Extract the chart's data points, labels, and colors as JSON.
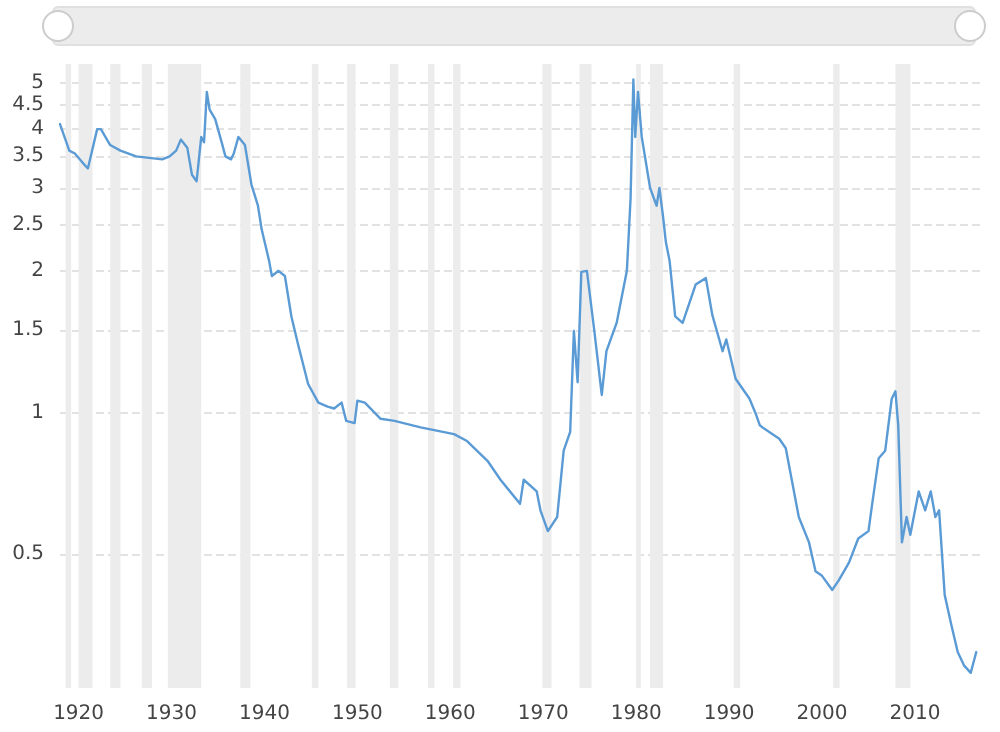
{
  "chart_data": {
    "type": "line",
    "log": "y",
    "grid": "y",
    "marker": "none",
    "line_style": "solid",
    "xlim": [
      1918,
      2017
    ],
    "xticks": [
      1920,
      1930,
      1940,
      1950,
      1960,
      1970,
      1980,
      1990,
      2000,
      2010
    ],
    "ylim": [
      0.26,
      5.5
    ],
    "yticks": [
      0.5,
      1,
      1.5,
      2,
      2.5,
      3,
      3.5,
      4,
      4.5,
      5
    ],
    "series": [
      {
        "color": "#5b9bd5",
        "x": [
          1918,
          1919,
          1919.6,
          1920.4,
          1921,
          1922,
          1922.4,
          1923.4,
          1924.5,
          1926.2,
          1929,
          1929.8,
          1930.5,
          1931,
          1931.7,
          1932.2,
          1932.7,
          1933.2,
          1933.5,
          1933.8,
          1934.1,
          1934.7,
          1935.4,
          1935.8,
          1936.4,
          1936.7,
          1937.2,
          1937.9,
          1938.6,
          1939.3,
          1939.7,
          1940.5,
          1940.8,
          1941.5,
          1942.2,
          1942.9,
          1943.6,
          1944.7,
          1945.8,
          1946.8,
          1947.5,
          1948.3,
          1948.8,
          1949.7,
          1950,
          1950.8,
          1952.5,
          1954,
          1956.8,
          1960.4,
          1961.8,
          1964,
          1965.4,
          1967.5,
          1967.9,
          1969.3,
          1969.7,
          1970.5,
          1971.5,
          1972.2,
          1972.9,
          1973.3,
          1973.7,
          1974.1,
          1974.7,
          1975.5,
          1976.3,
          1976.8,
          1977.9,
          1979,
          1979.4,
          1979.7,
          1979.9,
          1980.2,
          1980.6,
          1981.5,
          1982.2,
          1982.5,
          1982.9,
          1983.2,
          1983.6,
          1984.2,
          1985,
          1986.4,
          1987.5,
          1988.2,
          1989.3,
          1989.7,
          1990.7,
          1992.2,
          1992.9,
          1993.3,
          1993.6,
          1995.4,
          1996.1,
          1997.5,
          1998.6,
          1999.3,
          2000,
          2001.1,
          2001.8,
          2002.9,
          2003.9,
          2005,
          2005.4,
          2006.1,
          2006.8,
          2007.5,
          2007.9,
          2008.2,
          2008.6,
          2009.1,
          2009.5,
          2010.4,
          2011.1,
          2011.7,
          2012.2,
          2012.6,
          2013.2,
          2013.9,
          2014.6,
          2015.3,
          2016,
          2016.6
        ],
        "values": [
          4.1,
          3.6,
          3.55,
          3.4,
          3.3,
          4.0,
          4.0,
          3.7,
          3.6,
          3.5,
          3.45,
          3.5,
          3.6,
          3.8,
          3.65,
          3.2,
          3.1,
          3.85,
          3.75,
          4.8,
          4.4,
          4.2,
          3.75,
          3.5,
          3.45,
          3.55,
          3.85,
          3.7,
          3.05,
          2.75,
          2.45,
          2.1,
          1.95,
          2.0,
          1.95,
          1.6,
          1.4,
          1.15,
          1.05,
          1.03,
          1.02,
          1.05,
          0.96,
          0.95,
          1.06,
          1.05,
          0.97,
          0.96,
          0.93,
          0.9,
          0.87,
          0.79,
          0.72,
          0.64,
          0.72,
          0.68,
          0.62,
          0.56,
          0.6,
          0.83,
          0.91,
          1.49,
          1.16,
          1.99,
          2.0,
          1.49,
          1.09,
          1.35,
          1.55,
          2.0,
          2.85,
          5.1,
          3.85,
          4.8,
          3.85,
          3.0,
          2.75,
          3.0,
          2.6,
          2.3,
          2.1,
          1.6,
          1.55,
          1.87,
          1.93,
          1.61,
          1.35,
          1.43,
          1.18,
          1.07,
          0.99,
          0.94,
          0.93,
          0.88,
          0.84,
          0.6,
          0.53,
          0.46,
          0.45,
          0.42,
          0.44,
          0.48,
          0.54,
          0.56,
          0.64,
          0.8,
          0.83,
          1.07,
          1.11,
          0.94,
          0.53,
          0.6,
          0.55,
          0.68,
          0.62,
          0.68,
          0.6,
          0.62,
          0.41,
          0.355,
          0.31,
          0.29,
          0.28,
          0.31
        ]
      }
    ],
    "bands": [
      {
        "axis": "x",
        "from": 1918.6,
        "to": 1919.2,
        "color": "#ececec"
      },
      {
        "axis": "x",
        "from": 1920.0,
        "to": 1921.5,
        "color": "#ececec"
      },
      {
        "axis": "x",
        "from": 1923.4,
        "to": 1924.5,
        "color": "#ececec"
      },
      {
        "axis": "x",
        "from": 1926.8,
        "to": 1927.9,
        "color": "#ececec"
      },
      {
        "axis": "x",
        "from": 1929.6,
        "to": 1933.2,
        "color": "#ececec"
      },
      {
        "axis": "x",
        "from": 1937.4,
        "to": 1938.5,
        "color": "#ececec"
      },
      {
        "axis": "x",
        "from": 1945.1,
        "to": 1945.8,
        "color": "#ececec"
      },
      {
        "axis": "x",
        "from": 1948.9,
        "to": 1949.8,
        "color": "#ececec"
      },
      {
        "axis": "x",
        "from": 1953.5,
        "to": 1954.4,
        "color": "#ececec"
      },
      {
        "axis": "x",
        "from": 1957.6,
        "to": 1958.3,
        "color": "#ececec"
      },
      {
        "axis": "x",
        "from": 1960.3,
        "to": 1961.1,
        "color": "#ececec"
      },
      {
        "axis": "x",
        "from": 1969.9,
        "to": 1970.9,
        "color": "#ececec"
      },
      {
        "axis": "x",
        "from": 1973.9,
        "to": 1975.2,
        "color": "#ececec"
      },
      {
        "axis": "x",
        "from": 1980.0,
        "to": 1980.5,
        "color": "#ececec"
      },
      {
        "axis": "x",
        "from": 1981.5,
        "to": 1982.9,
        "color": "#ececec"
      },
      {
        "axis": "x",
        "from": 1990.5,
        "to": 1991.2,
        "color": "#ececec"
      },
      {
        "axis": "x",
        "from": 2001.2,
        "to": 2001.9,
        "color": "#ececec"
      },
      {
        "axis": "x",
        "from": 2007.9,
        "to": 2009.5,
        "color": "#ececec"
      }
    ]
  }
}
